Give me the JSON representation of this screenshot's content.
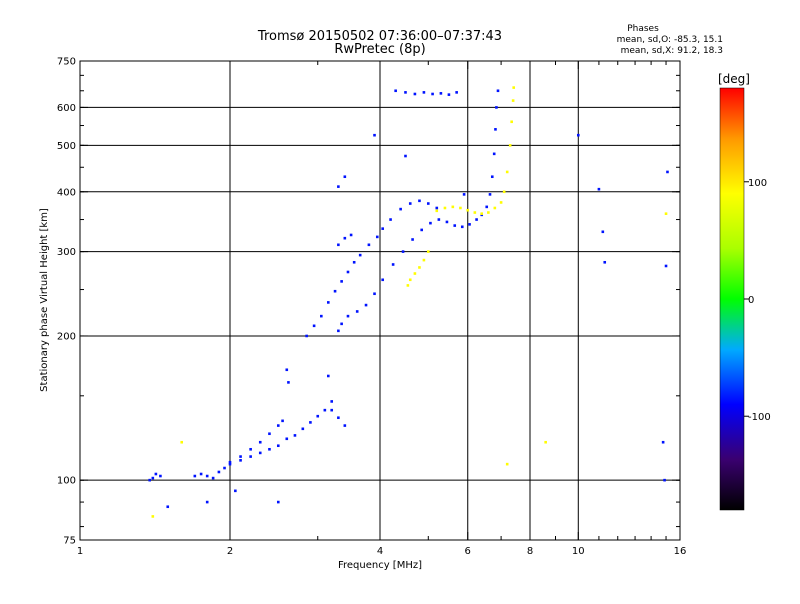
{
  "chart_data": {
    "type": "scatter",
    "title": "Tromsø 20150502 07:36:00–07:37:43",
    "subtitle": "RwPretec (8p)",
    "xlabel": "Frequency [MHz]",
    "ylabel": "Stationary phase Virtual Height [km]",
    "x_scale": "log",
    "y_scale": "log",
    "xlim": [
      1,
      16
    ],
    "ylim": [
      75,
      750
    ],
    "x_ticks": [
      1,
      2,
      4,
      6,
      8,
      10,
      16
    ],
    "x_tick_labels": [
      "1",
      "2",
      "4",
      "6",
      "8",
      "10",
      "16"
    ],
    "x_gridlines": [
      2,
      4,
      6,
      8,
      10
    ],
    "y_ticks": [
      75,
      100,
      200,
      300,
      400,
      500,
      600,
      750
    ],
    "y_tick_labels": [
      "75",
      "100",
      "200",
      "300",
      "400",
      "500",
      "600",
      "750"
    ],
    "y_gridlines": [
      100,
      200,
      300,
      400,
      500,
      600
    ],
    "grid": true,
    "legend": {
      "heading": "Phases",
      "lines": [
        "mean, sd,O: -85.3, 15.1",
        "mean, sd,X:  91.2, 18.3"
      ],
      "placement": "top-right"
    },
    "colorbar": {
      "label": "[deg]",
      "range": [
        -180,
        180
      ],
      "ticks": [
        100,
        0,
        -100
      ],
      "tick_labels": [
        "100",
        "0",
        "-100"
      ],
      "placement": "right"
    },
    "series": [
      {
        "name": "O",
        "color_phase_deg": -85,
        "points": [
          [
            1.38,
            100
          ],
          [
            1.4,
            101
          ],
          [
            1.42,
            103
          ],
          [
            1.45,
            102
          ],
          [
            1.7,
            102
          ],
          [
            1.75,
            103
          ],
          [
            1.8,
            102
          ],
          [
            1.85,
            101
          ],
          [
            1.9,
            104
          ],
          [
            1.95,
            106
          ],
          [
            2.0,
            108
          ],
          [
            2.1,
            110
          ],
          [
            2.2,
            112
          ],
          [
            2.3,
            114
          ],
          [
            2.4,
            116
          ],
          [
            2.5,
            118
          ],
          [
            2.6,
            122
          ],
          [
            2.7,
            124
          ],
          [
            2.8,
            128
          ],
          [
            2.9,
            132
          ],
          [
            3.0,
            136
          ],
          [
            3.1,
            140
          ],
          [
            3.2,
            146
          ],
          [
            3.3,
            135
          ],
          [
            3.4,
            130
          ],
          [
            2.0,
            109
          ],
          [
            2.1,
            112
          ],
          [
            2.2,
            116
          ],
          [
            2.3,
            120
          ],
          [
            2.4,
            125
          ],
          [
            2.5,
            130
          ],
          [
            2.55,
            133
          ],
          [
            2.6,
            170
          ],
          [
            2.62,
            160
          ],
          [
            3.15,
            165
          ],
          [
            3.2,
            140
          ],
          [
            2.85,
            200
          ],
          [
            2.95,
            210
          ],
          [
            3.05,
            220
          ],
          [
            3.15,
            235
          ],
          [
            3.25,
            248
          ],
          [
            3.35,
            260
          ],
          [
            3.45,
            272
          ],
          [
            3.55,
            285
          ],
          [
            3.65,
            295
          ],
          [
            3.8,
            310
          ],
          [
            3.95,
            322
          ],
          [
            4.05,
            335
          ],
          [
            4.2,
            350
          ],
          [
            4.4,
            368
          ],
          [
            4.6,
            378
          ],
          [
            4.8,
            383
          ],
          [
            5.0,
            378
          ],
          [
            5.2,
            370
          ],
          [
            3.3,
            205
          ],
          [
            3.35,
            212
          ],
          [
            3.45,
            220
          ],
          [
            3.6,
            225
          ],
          [
            3.75,
            232
          ],
          [
            3.9,
            245
          ],
          [
            4.05,
            262
          ],
          [
            4.25,
            282
          ],
          [
            4.45,
            300
          ],
          [
            4.65,
            318
          ],
          [
            4.85,
            333
          ],
          [
            5.05,
            344
          ],
          [
            5.25,
            350
          ],
          [
            5.45,
            346
          ],
          [
            5.65,
            340
          ],
          [
            5.85,
            338
          ],
          [
            6.05,
            342
          ],
          [
            6.25,
            350
          ],
          [
            6.4,
            358
          ],
          [
            6.55,
            372
          ],
          [
            6.65,
            395
          ],
          [
            6.72,
            430
          ],
          [
            6.78,
            480
          ],
          [
            6.82,
            540
          ],
          [
            6.85,
            600
          ],
          [
            6.9,
            650
          ],
          [
            3.3,
            310
          ],
          [
            3.4,
            320
          ],
          [
            3.5,
            325
          ],
          [
            4.3,
            650
          ],
          [
            4.5,
            645
          ],
          [
            4.7,
            640
          ],
          [
            4.9,
            645
          ],
          [
            5.1,
            640
          ],
          [
            5.3,
            642
          ],
          [
            5.5,
            638
          ],
          [
            5.7,
            645
          ],
          [
            3.9,
            525
          ],
          [
            4.5,
            475
          ],
          [
            3.3,
            410
          ],
          [
            3.4,
            430
          ],
          [
            5.9,
            395
          ],
          [
            1.5,
            88
          ],
          [
            1.8,
            90
          ],
          [
            2.05,
            95
          ],
          [
            2.5,
            90
          ],
          [
            10.0,
            525
          ],
          [
            11.0,
            405
          ],
          [
            11.2,
            330
          ],
          [
            11.3,
            285
          ],
          [
            14.8,
            120
          ],
          [
            14.9,
            100
          ],
          [
            15.0,
            280
          ],
          [
            15.1,
            440
          ]
        ]
      },
      {
        "name": "X",
        "color_phase_deg": 91,
        "points": [
          [
            4.55,
            255
          ],
          [
            4.6,
            262
          ],
          [
            4.7,
            270
          ],
          [
            4.8,
            278
          ],
          [
            4.9,
            288
          ],
          [
            5.0,
            300
          ],
          [
            5.2,
            365
          ],
          [
            5.4,
            370
          ],
          [
            5.6,
            372
          ],
          [
            5.8,
            370
          ],
          [
            6.0,
            366
          ],
          [
            6.2,
            362
          ],
          [
            6.4,
            360
          ],
          [
            6.6,
            362
          ],
          [
            6.8,
            370
          ],
          [
            7.0,
            380
          ],
          [
            7.1,
            400
          ],
          [
            7.2,
            440
          ],
          [
            7.3,
            500
          ],
          [
            7.35,
            560
          ],
          [
            7.4,
            620
          ],
          [
            7.42,
            660
          ],
          [
            7.2,
            108
          ],
          [
            8.6,
            120
          ],
          [
            1.4,
            84
          ],
          [
            1.6,
            120
          ],
          [
            15.0,
            360
          ]
        ]
      }
    ]
  }
}
